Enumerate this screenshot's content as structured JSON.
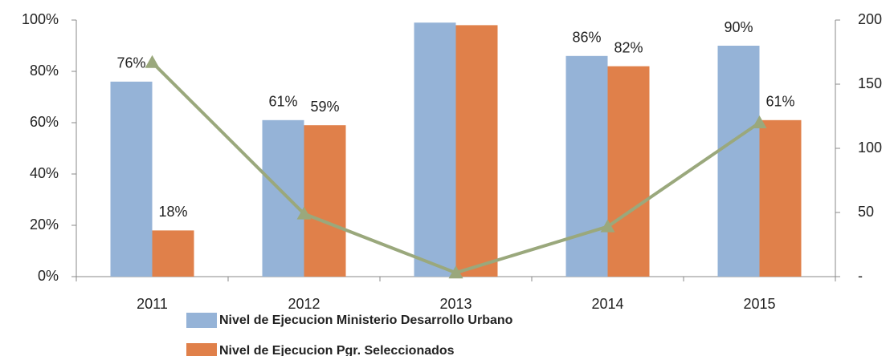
{
  "chart_data": {
    "type": "bar",
    "categories": [
      "2011",
      "2012",
      "2013",
      "2014",
      "2015"
    ],
    "series": [
      {
        "name": "Nivel de Ejecucion Ministerio Desarrollo Urbano",
        "color": "#95b3d7",
        "values": [
          76,
          61,
          99,
          86,
          90
        ],
        "value_labels": [
          "76%",
          "61%",
          null,
          "86%",
          "90%"
        ]
      },
      {
        "name": "Nivel de Ejecucion Pgr. Seleccionados",
        "color": "#e0804a",
        "values": [
          18,
          59,
          98,
          82,
          61
        ],
        "value_labels": [
          "18%",
          "59%",
          null,
          "82%",
          "61%"
        ]
      },
      {
        "type": "line",
        "axis": "y2",
        "color": "#9aa87c",
        "values": [
          167,
          49,
          3,
          39,
          120
        ]
      }
    ],
    "ylim": [
      0,
      100
    ],
    "yticks": [
      {
        "value": 0,
        "label": "0%"
      },
      {
        "value": 20,
        "label": "20%"
      },
      {
        "value": 40,
        "label": "40%"
      },
      {
        "value": 60,
        "label": "60%"
      },
      {
        "value": 80,
        "label": "80%"
      },
      {
        "value": 100,
        "label": "100%"
      }
    ],
    "y2lim": [
      0,
      200
    ],
    "y2ticks": [
      {
        "value": 0,
        "label": "-"
      },
      50,
      100,
      150,
      200
    ]
  }
}
